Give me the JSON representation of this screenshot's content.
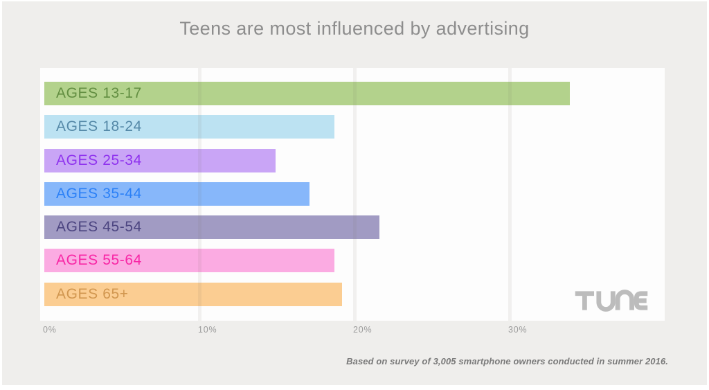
{
  "title": "Teens are most influenced by advertising",
  "chart_data": {
    "type": "bar",
    "orientation": "horizontal",
    "title": "Teens are most influenced by advertising",
    "categories": [
      "AGES 13-17",
      "AGES 18-24",
      "AGES 25-34",
      "AGES 35-44",
      "AGES 45-54",
      "AGES 55-64",
      "AGES 65+"
    ],
    "values": [
      33.9,
      18.7,
      14.9,
      17.1,
      21.6,
      18.7,
      19.2
    ],
    "unit": "%",
    "xlabel": "",
    "ylabel": "",
    "xlim": [
      0,
      40
    ],
    "x_ticks": [
      {
        "label": "0%",
        "value": 0
      },
      {
        "label": "10%",
        "value": 10
      },
      {
        "label": "20%",
        "value": 20
      },
      {
        "label": "30%",
        "value": 30
      }
    ],
    "grid": true,
    "legend": false,
    "bar_colors": [
      "#b3d28c",
      "#bce2f2",
      "#c9a5f6",
      "#87b7fa",
      "#a19bc3",
      "#fbabe2",
      "#fbcd92"
    ],
    "label_colors": [
      "#628e41",
      "#5589a8",
      "#8f33ee",
      "#2b80f7",
      "#4b4480",
      "#f826a5",
      "#d1964f"
    ]
  },
  "footnote": "Based on survey of 3,005 smartphone owners conducted in summer 2016.",
  "logo": {
    "text": "TUNE",
    "color": "#bcbcbc"
  },
  "colors": {
    "panel_bg": "#efeeec",
    "plot_bg": "#fdfdfd",
    "title": "#8d8d8d",
    "tick": "#9b9b9b",
    "footnote": "#7a7a7a"
  }
}
